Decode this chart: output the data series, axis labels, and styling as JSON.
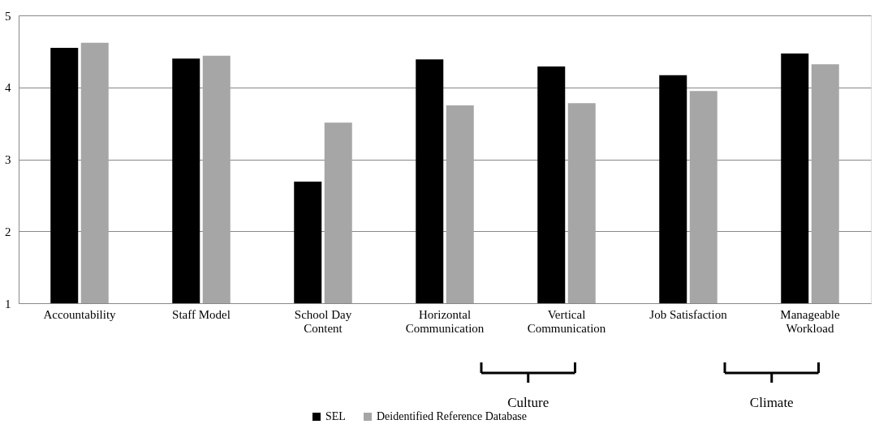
{
  "chart_data": {
    "type": "bar",
    "categories": [
      "Accountability",
      "Staff Model",
      "School Day Content",
      "Horizontal Communication",
      "Vertical Communication",
      "Job Satisfaction",
      "Manageable Workload"
    ],
    "series": [
      {
        "name": "SEL",
        "color": "#000000",
        "values": [
          4.55,
          4.4,
          2.69,
          4.39,
          4.29,
          4.17,
          4.47
        ]
      },
      {
        "name": "Deidentified Reference Database",
        "color": "#a6a6a6",
        "values": [
          4.62,
          4.44,
          3.51,
          3.75,
          3.78,
          3.95,
          4.32
        ]
      }
    ],
    "ylim": [
      1,
      5
    ],
    "yticks": [
      1,
      2,
      3,
      4,
      5
    ],
    "grid": "y",
    "legend": "bottom",
    "annotations": [
      "Culture",
      "Climate"
    ]
  }
}
